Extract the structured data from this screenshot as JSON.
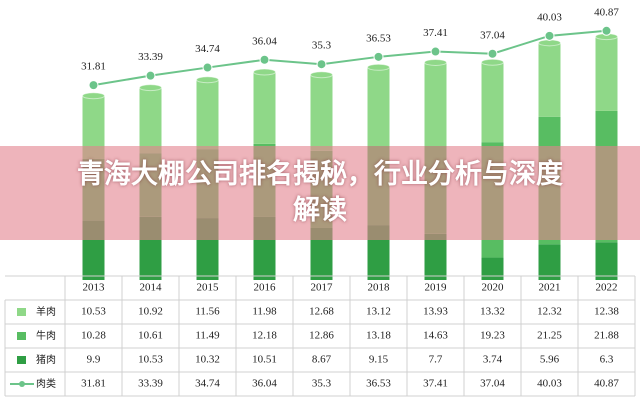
{
  "chart_data": {
    "type": "bar",
    "categories": [
      "2013",
      "2014",
      "2015",
      "2016",
      "2017",
      "2018",
      "2019",
      "2020",
      "2021",
      "2022"
    ],
    "series": [
      {
        "name": "羊肉",
        "color": "#8fd888",
        "values": [
          10.53,
          10.92,
          11.56,
          11.98,
          12.68,
          13.12,
          13.93,
          13.32,
          12.32,
          12.38
        ]
      },
      {
        "name": "牛肉",
        "color": "#58bd62",
        "values": [
          10.28,
          10.61,
          11.49,
          12.18,
          12.86,
          13.18,
          14.63,
          19.23,
          21.25,
          21.88
        ]
      },
      {
        "name": "猪肉",
        "color": "#2f9e44",
        "values": [
          9.9,
          10.53,
          10.32,
          10.51,
          8.67,
          9.15,
          7.7,
          3.74,
          5.96,
          6.3
        ]
      },
      {
        "name": "肉类",
        "type": "line",
        "color": "#6cc48a",
        "values": [
          31.81,
          33.39,
          34.74,
          36.04,
          35.3,
          36.53,
          37.41,
          37.04,
          40.03,
          40.87
        ]
      }
    ]
  },
  "overlay": {
    "title": "青海大棚公司排名揭秘，行业分析与深度解读"
  }
}
